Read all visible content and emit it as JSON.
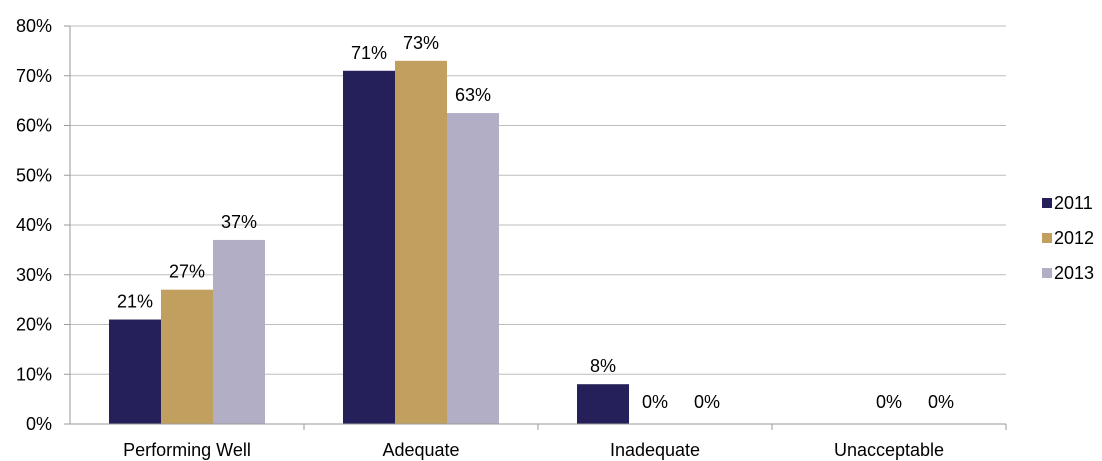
{
  "chart_data": {
    "type": "bar",
    "categories": [
      "Performing Well",
      "Adequate",
      "Inadequate",
      "Unacceptable"
    ],
    "series": [
      {
        "name": "2011",
        "color": "#252059",
        "values": [
          21,
          71,
          8,
          0
        ],
        "labels": [
          "21%",
          "71%",
          "8%",
          ""
        ]
      },
      {
        "name": "2012",
        "color": "#c19f5e",
        "values": [
          27,
          73,
          0,
          0
        ],
        "labels": [
          "27%",
          "73%",
          "0%",
          "0%"
        ]
      },
      {
        "name": "2013",
        "color": "#b1aec6",
        "values": [
          37,
          62.5,
          0,
          0
        ],
        "labels": [
          "37%",
          "63%",
          "0%",
          "0%"
        ]
      }
    ],
    "yticks": [
      "0%",
      "10%",
      "20%",
      "30%",
      "40%",
      "50%",
      "60%",
      "70%",
      "80%"
    ],
    "ylim": [
      0,
      80
    ],
    "grid": true,
    "legend_position": "right",
    "title": "",
    "xlabel": "",
    "ylabel": ""
  }
}
